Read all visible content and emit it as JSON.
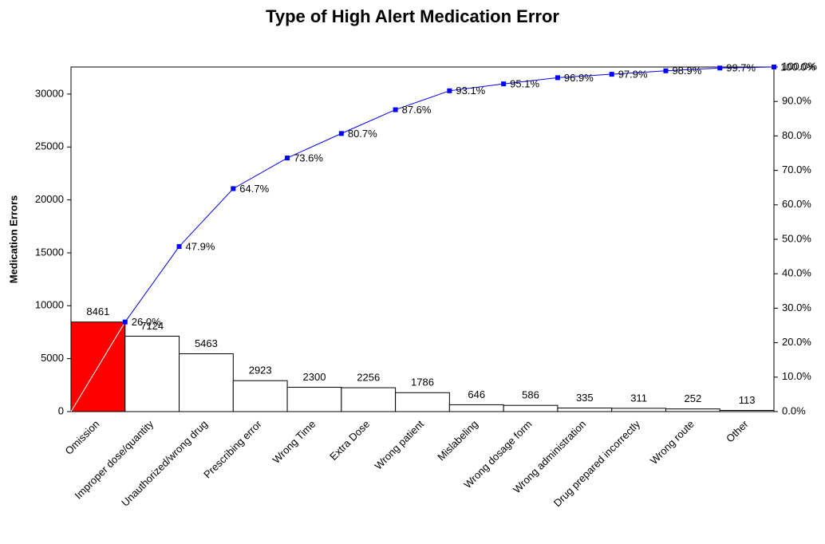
{
  "chart_data": {
    "type": "pareto",
    "title": "Type of High Alert Medication Error",
    "y_label": "Medication Errors",
    "categories": [
      "Omission",
      "Improper dose/quantity",
      "Unauthorized/wrong drug",
      "Prescribing error",
      "Wrong Time",
      "Extra Dose",
      "Wrong patient",
      "Mislabeling",
      "Wrong dosage form",
      "Wrong administration",
      "Drug prepared incorrectly",
      "Wrong route",
      "Other"
    ],
    "series": [
      {
        "type": "bar",
        "colors": [
          "#ff0000",
          "#ffffff",
          "#ffffff",
          "#ffffff",
          "#ffffff",
          "#ffffff",
          "#ffffff",
          "#ffffff",
          "#ffffff",
          "#ffffff",
          "#ffffff",
          "#ffffff",
          "#ffffff"
        ],
        "values": [
          8461,
          7124,
          5463,
          2923,
          2300,
          2256,
          1786,
          646,
          586,
          335,
          311,
          252,
          113
        ]
      },
      {
        "type": "line",
        "axis": "y2",
        "color": "#0000ff",
        "values": [
          26.0,
          47.9,
          64.7,
          73.6,
          80.7,
          87.6,
          93.1,
          95.1,
          96.9,
          97.9,
          98.9,
          99.7,
          100.0
        ],
        "value_labels": [
          "26.0%",
          "47.9%",
          "64.7%",
          "73.6%",
          "80.7%",
          "87.6%",
          "93.1%",
          "95.1%",
          "96.9%",
          "97.9%",
          "98.9%",
          "99.7%",
          "100.0%"
        ]
      }
    ],
    "ylim": [
      0,
      32556
    ],
    "yticks": [
      0,
      5000,
      10000,
      15000,
      20000,
      25000,
      30000
    ],
    "y2lim": [
      0,
      100
    ],
    "y2ticks": [
      {
        "value": 0,
        "label": "0.0%"
      },
      {
        "value": 10,
        "label": "10.0%"
      },
      {
        "value": 20,
        "label": "20.0%"
      },
      {
        "value": 30,
        "label": "30.0%"
      },
      {
        "value": 40,
        "label": "40.0%"
      },
      {
        "value": 50,
        "label": "50.0%"
      },
      {
        "value": 60,
        "label": "60.0%"
      },
      {
        "value": 70,
        "label": "70.0%"
      },
      {
        "value": 80,
        "label": "80.0%"
      },
      {
        "value": 90,
        "label": "90.0%"
      },
      {
        "value": 100,
        "label": "100.0%"
      }
    ],
    "grid": false
  }
}
